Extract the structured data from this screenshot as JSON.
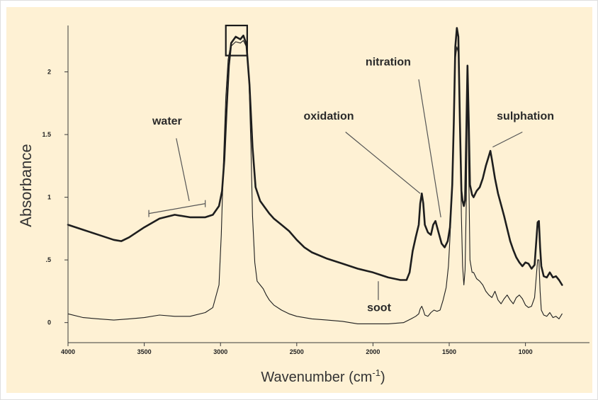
{
  "colors": {
    "panel_background": "#fef1d4",
    "line": "#1e1e1e",
    "axis": "#3a3a3a",
    "outer_border": "#dedede"
  },
  "chart_data": {
    "type": "line",
    "title": "",
    "xlabel": "Wavenumber (cm",
    "xlabel_superscript": "-1",
    "ylabel": "Absorbance",
    "xlim": [
      4000,
      580
    ],
    "x_reversed": true,
    "ylim": [
      -0.16,
      2.37
    ],
    "grid": false,
    "legend": "none",
    "x_ticks": [
      {
        "value": 4000,
        "label": "4000"
      },
      {
        "value": 3500,
        "label": "3500"
      },
      {
        "value": 3000,
        "label": "3000"
      },
      {
        "value": 2500,
        "label": "2500"
      },
      {
        "value": 2000,
        "label": "2000"
      },
      {
        "value": 1500,
        "label": "1500"
      },
      {
        "value": 1000,
        "label": "1000"
      }
    ],
    "y_ticks": [
      {
        "value": 0,
        "label": "0"
      },
      {
        "value": 0.5,
        "label": ".5"
      },
      {
        "value": 1,
        "label": "1"
      },
      {
        "value": 1.5,
        "label": "1.5"
      },
      {
        "value": 2,
        "label": "2"
      }
    ],
    "series": [
      {
        "style": "thick",
        "points": [
          [
            4000,
            0.78
          ],
          [
            3900,
            0.74
          ],
          [
            3800,
            0.7
          ],
          [
            3700,
            0.66
          ],
          [
            3650,
            0.65
          ],
          [
            3600,
            0.68
          ],
          [
            3500,
            0.76
          ],
          [
            3400,
            0.83
          ],
          [
            3300,
            0.86
          ],
          [
            3200,
            0.84
          ],
          [
            3100,
            0.84
          ],
          [
            3050,
            0.86
          ],
          [
            3010,
            0.93
          ],
          [
            2990,
            1.05
          ],
          [
            2975,
            1.3
          ],
          [
            2960,
            1.7
          ],
          [
            2945,
            2.05
          ],
          [
            2930,
            2.23
          ],
          [
            2900,
            2.28
          ],
          [
            2870,
            2.26
          ],
          [
            2850,
            2.29
          ],
          [
            2830,
            2.22
          ],
          [
            2810,
            1.9
          ],
          [
            2790,
            1.4
          ],
          [
            2770,
            1.08
          ],
          [
            2740,
            0.97
          ],
          [
            2710,
            0.92
          ],
          [
            2680,
            0.87
          ],
          [
            2650,
            0.83
          ],
          [
            2600,
            0.78
          ],
          [
            2550,
            0.73
          ],
          [
            2500,
            0.66
          ],
          [
            2450,
            0.6
          ],
          [
            2400,
            0.56
          ],
          [
            2300,
            0.51
          ],
          [
            2200,
            0.47
          ],
          [
            2100,
            0.43
          ],
          [
            2000,
            0.4
          ],
          [
            1950,
            0.38
          ],
          [
            1900,
            0.36
          ],
          [
            1820,
            0.34
          ],
          [
            1780,
            0.34
          ],
          [
            1760,
            0.4
          ],
          [
            1740,
            0.57
          ],
          [
            1720,
            0.68
          ],
          [
            1700,
            0.78
          ],
          [
            1690,
            0.95
          ],
          [
            1680,
            1.03
          ],
          [
            1670,
            0.95
          ],
          [
            1660,
            0.78
          ],
          [
            1640,
            0.72
          ],
          [
            1620,
            0.7
          ],
          [
            1605,
            0.78
          ],
          [
            1590,
            0.81
          ],
          [
            1570,
            0.72
          ],
          [
            1550,
            0.63
          ],
          [
            1530,
            0.6
          ],
          [
            1510,
            0.65
          ],
          [
            1495,
            0.76
          ],
          [
            1480,
            1.1
          ],
          [
            1470,
            1.6
          ],
          [
            1460,
            2.2
          ],
          [
            1450,
            2.35
          ],
          [
            1440,
            2.28
          ],
          [
            1430,
            1.6
          ],
          [
            1420,
            1.05
          ],
          [
            1412,
            0.97
          ],
          [
            1404,
            0.93
          ],
          [
            1396,
            0.98
          ],
          [
            1388,
            1.5
          ],
          [
            1380,
            2.05
          ],
          [
            1372,
            1.6
          ],
          [
            1364,
            1.1
          ],
          [
            1350,
            1.02
          ],
          [
            1340,
            1.0
          ],
          [
            1320,
            1.05
          ],
          [
            1300,
            1.08
          ],
          [
            1280,
            1.15
          ],
          [
            1260,
            1.25
          ],
          [
            1240,
            1.33
          ],
          [
            1230,
            1.37
          ],
          [
            1220,
            1.3
          ],
          [
            1200,
            1.15
          ],
          [
            1180,
            1.03
          ],
          [
            1160,
            0.94
          ],
          [
            1140,
            0.85
          ],
          [
            1120,
            0.75
          ],
          [
            1100,
            0.65
          ],
          [
            1080,
            0.58
          ],
          [
            1060,
            0.52
          ],
          [
            1040,
            0.48
          ],
          [
            1020,
            0.45
          ],
          [
            1000,
            0.48
          ],
          [
            980,
            0.47
          ],
          [
            960,
            0.43
          ],
          [
            940,
            0.46
          ],
          [
            920,
            0.8
          ],
          [
            912,
            0.81
          ],
          [
            904,
            0.6
          ],
          [
            896,
            0.45
          ],
          [
            880,
            0.37
          ],
          [
            860,
            0.36
          ],
          [
            840,
            0.4
          ],
          [
            820,
            0.36
          ],
          [
            800,
            0.37
          ],
          [
            780,
            0.34
          ],
          [
            760,
            0.3
          ]
        ]
      },
      {
        "style": "thin",
        "points": [
          [
            4000,
            0.07
          ],
          [
            3900,
            0.04
          ],
          [
            3800,
            0.03
          ],
          [
            3700,
            0.02
          ],
          [
            3600,
            0.03
          ],
          [
            3500,
            0.04
          ],
          [
            3400,
            0.06
          ],
          [
            3300,
            0.05
          ],
          [
            3200,
            0.05
          ],
          [
            3100,
            0.08
          ],
          [
            3050,
            0.12
          ],
          [
            3010,
            0.3
          ],
          [
            2995,
            0.7
          ],
          [
            2980,
            1.3
          ],
          [
            2965,
            1.8
          ],
          [
            2950,
            2.1
          ],
          [
            2935,
            2.2
          ],
          [
            2900,
            2.24
          ],
          [
            2870,
            2.23
          ],
          [
            2850,
            2.25
          ],
          [
            2830,
            2.2
          ],
          [
            2815,
            2.0
          ],
          [
            2800,
            1.4
          ],
          [
            2790,
            0.85
          ],
          [
            2775,
            0.48
          ],
          [
            2760,
            0.33
          ],
          [
            2740,
            0.3
          ],
          [
            2720,
            0.27
          ],
          [
            2700,
            0.22
          ],
          [
            2680,
            0.18
          ],
          [
            2650,
            0.14
          ],
          [
            2600,
            0.1
          ],
          [
            2550,
            0.07
          ],
          [
            2500,
            0.05
          ],
          [
            2400,
            0.03
          ],
          [
            2300,
            0.02
          ],
          [
            2200,
            0.01
          ],
          [
            2100,
            -0.01
          ],
          [
            2000,
            -0.01
          ],
          [
            1900,
            -0.01
          ],
          [
            1800,
            0.0
          ],
          [
            1750,
            0.03
          ],
          [
            1720,
            0.05
          ],
          [
            1700,
            0.07
          ],
          [
            1690,
            0.11
          ],
          [
            1680,
            0.13
          ],
          [
            1670,
            0.1
          ],
          [
            1660,
            0.06
          ],
          [
            1640,
            0.05
          ],
          [
            1620,
            0.08
          ],
          [
            1600,
            0.1
          ],
          [
            1580,
            0.09
          ],
          [
            1560,
            0.1
          ],
          [
            1540,
            0.18
          ],
          [
            1520,
            0.28
          ],
          [
            1505,
            0.45
          ],
          [
            1495,
            0.68
          ],
          [
            1480,
            1.1
          ],
          [
            1470,
            1.6
          ],
          [
            1460,
            2.1
          ],
          [
            1450,
            2.2
          ],
          [
            1440,
            2.15
          ],
          [
            1430,
            1.6
          ],
          [
            1420,
            0.85
          ],
          [
            1412,
            0.45
          ],
          [
            1404,
            0.3
          ],
          [
            1396,
            0.42
          ],
          [
            1388,
            0.96
          ],
          [
            1380,
            1.88
          ],
          [
            1372,
            1.2
          ],
          [
            1364,
            0.5
          ],
          [
            1350,
            0.4
          ],
          [
            1340,
            0.4
          ],
          [
            1320,
            0.35
          ],
          [
            1300,
            0.33
          ],
          [
            1280,
            0.3
          ],
          [
            1260,
            0.25
          ],
          [
            1240,
            0.22
          ],
          [
            1220,
            0.2
          ],
          [
            1200,
            0.25
          ],
          [
            1180,
            0.18
          ],
          [
            1160,
            0.15
          ],
          [
            1140,
            0.19
          ],
          [
            1120,
            0.22
          ],
          [
            1100,
            0.18
          ],
          [
            1080,
            0.15
          ],
          [
            1060,
            0.2
          ],
          [
            1040,
            0.22
          ],
          [
            1020,
            0.19
          ],
          [
            1000,
            0.14
          ],
          [
            980,
            0.12
          ],
          [
            960,
            0.13
          ],
          [
            940,
            0.2
          ],
          [
            920,
            0.5
          ],
          [
            912,
            0.5
          ],
          [
            904,
            0.25
          ],
          [
            896,
            0.1
          ],
          [
            880,
            0.06
          ],
          [
            860,
            0.05
          ],
          [
            840,
            0.08
          ],
          [
            820,
            0.04
          ],
          [
            800,
            0.05
          ],
          [
            780,
            0.03
          ],
          [
            760,
            0.07
          ]
        ]
      }
    ],
    "annotations": [
      {
        "text": "water",
        "label_at": [
          3350,
          1.58
        ],
        "bracket": [
          3470,
          3100,
          0.87
        ],
        "leader_from": [
          3290,
          1.47
        ],
        "leader_to": [
          3205,
          0.97
        ]
      },
      {
        "text": "oxidation",
        "label_at": [
          2290,
          1.62
        ],
        "leader_from": [
          2180,
          1.52
        ],
        "leader_to": [
          1690,
          1.03
        ]
      },
      {
        "text": "nitration",
        "label_at": [
          1900,
          2.05
        ],
        "leader_from": [
          1700,
          1.94
        ],
        "leader_to": [
          1555,
          0.84
        ]
      },
      {
        "text": "sulphation",
        "label_at": [
          1000,
          1.62
        ],
        "leader_from": [
          1020,
          1.52
        ],
        "leader_to": [
          1215,
          1.4
        ]
      },
      {
        "text": "soot",
        "label_at": [
          1960,
          0.09
        ],
        "leader_from": [
          1965,
          0.33
        ],
        "leader_to": [
          1965,
          0.18
        ]
      }
    ],
    "highlight_box": {
      "x": [
        2965,
        2825
      ],
      "y": [
        2.13,
        2.37
      ]
    }
  }
}
